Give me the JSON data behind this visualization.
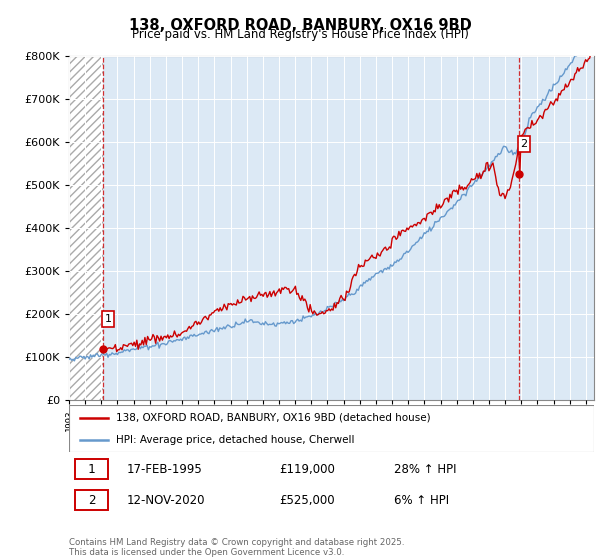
{
  "title": "138, OXFORD ROAD, BANBURY, OX16 9BD",
  "subtitle": "Price paid vs. HM Land Registry's House Price Index (HPI)",
  "legend_line1": "138, OXFORD ROAD, BANBURY, OX16 9BD (detached house)",
  "legend_line2": "HPI: Average price, detached house, Cherwell",
  "annotation1_label": "1",
  "annotation1_date": "17-FEB-1995",
  "annotation1_price": "£119,000",
  "annotation1_hpi": "28% ↑ HPI",
  "annotation2_label": "2",
  "annotation2_date": "12-NOV-2020",
  "annotation2_price": "£525,000",
  "annotation2_hpi": "6% ↑ HPI",
  "footer": "Contains HM Land Registry data © Crown copyright and database right 2025.\nThis data is licensed under the Open Government Licence v3.0.",
  "red_color": "#cc0000",
  "blue_color": "#6699cc",
  "marker1_x": 1995.12,
  "marker1_y": 119000,
  "marker2_x": 2020.87,
  "marker2_y": 525000,
  "ylim": [
    0,
    800000
  ],
  "xlim": [
    1993.0,
    2025.5
  ],
  "chart_bg_color": "#dce9f5",
  "hatch_color": "#ffffff"
}
